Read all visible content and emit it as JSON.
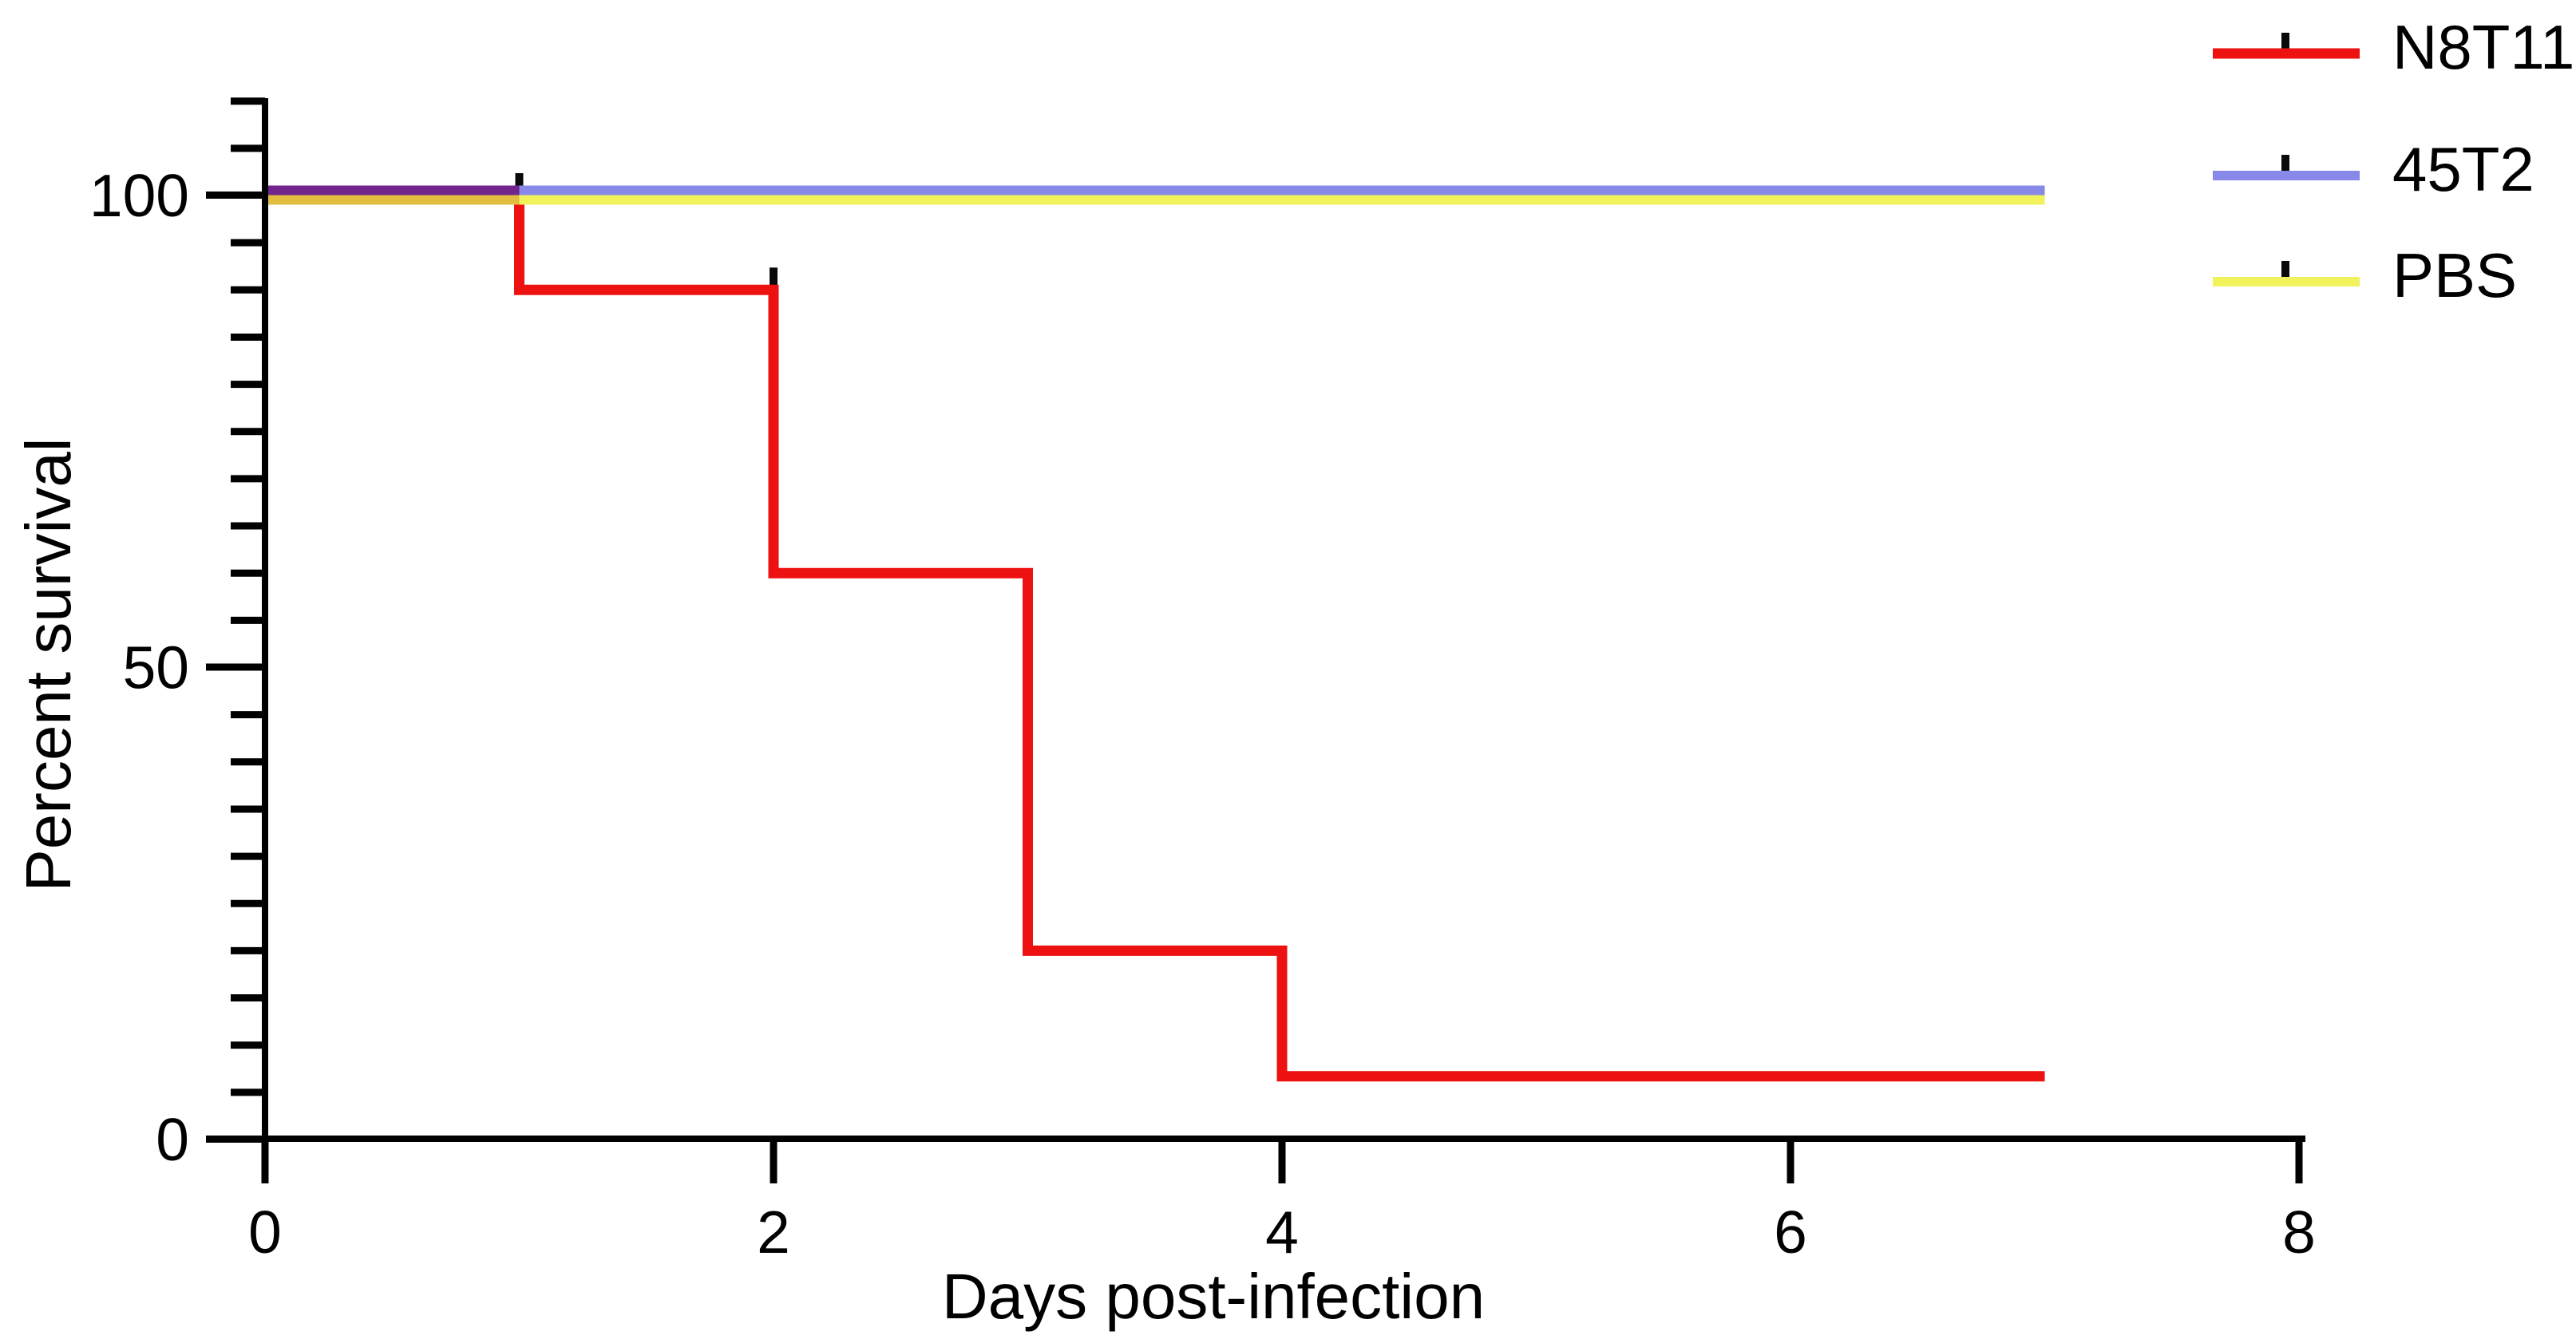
{
  "chart_data": {
    "type": "line",
    "subtype": "kaplan-meier-step",
    "title": "",
    "xlabel": "Days post-infection",
    "ylabel": "Percent survival",
    "xlim": [
      0,
      8
    ],
    "ylim": [
      0,
      110
    ],
    "grid": false,
    "x_ticks": [
      {
        "v": 0,
        "label": "0"
      },
      {
        "v": 2,
        "label": "2"
      },
      {
        "v": 4,
        "label": "4"
      },
      {
        "v": 6,
        "label": "6"
      },
      {
        "v": 8,
        "label": "8"
      }
    ],
    "y_ticks_major": [
      {
        "v": 0,
        "label": "0"
      },
      {
        "v": 50,
        "label": "50"
      },
      {
        "v": 100,
        "label": "100"
      }
    ],
    "y_minor_tick_step": 5,
    "series": [
      {
        "name": "N8T11",
        "color": "#ee1111",
        "style": "step",
        "points": [
          [
            0,
            100
          ],
          [
            1,
            100
          ],
          [
            1,
            90
          ],
          [
            2,
            90
          ],
          [
            2,
            60
          ],
          [
            3,
            60
          ],
          [
            3,
            20
          ],
          [
            4,
            20
          ],
          [
            4,
            6.7
          ],
          [
            7,
            6.7
          ]
        ],
        "event_tick_color": "#0a0a0a",
        "event_ticks": [
          [
            1,
            100
          ],
          [
            1,
            90
          ],
          [
            2,
            90
          ],
          [
            2,
            60
          ],
          [
            3,
            20
          ],
          [
            4,
            6.7
          ]
        ]
      },
      {
        "name": "45T2",
        "color": "#8888e8",
        "style": "line",
        "points": [
          [
            0,
            100
          ],
          [
            7,
            100
          ]
        ]
      },
      {
        "name": "PBS",
        "color": "#f2f25c",
        "style": "line",
        "points": [
          [
            0,
            100
          ],
          [
            7,
            100
          ]
        ]
      }
    ],
    "overlap_segments": [
      {
        "comment": "red under blue 0-1 days renders purple",
        "color": "#71258c",
        "from": 0,
        "to": 1,
        "value": 100,
        "offset": "blue"
      },
      {
        "comment": "red under yellow 0-1 days renders orange-yellow",
        "color": "#e2bd3f",
        "from": 0,
        "to": 1,
        "value": 100,
        "offset": "yellow"
      }
    ],
    "legend": {
      "position": "top-right",
      "entries": [
        {
          "label": "N8T11",
          "color": "#ee1111"
        },
        {
          "label": "45T2",
          "color": "#8888e8"
        },
        {
          "label": "PBS",
          "color": "#f2f25c"
        }
      ]
    }
  }
}
